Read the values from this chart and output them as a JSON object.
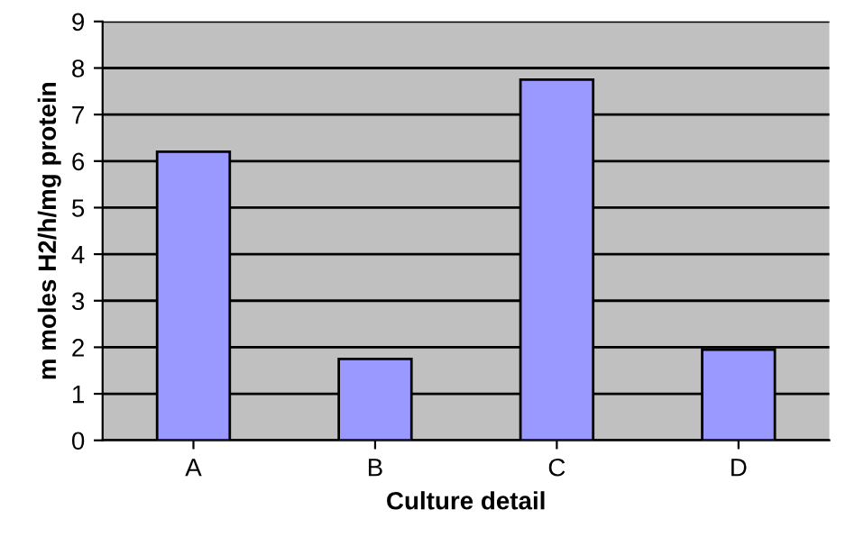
{
  "chart_data": {
    "type": "bar",
    "xlabel": "Culture detail",
    "ylabel": "m moles H2/h/mg protein",
    "categories": [
      "A",
      "B",
      "C",
      "D"
    ],
    "values": [
      6.2,
      1.75,
      7.75,
      1.95
    ],
    "color": "#9999ff",
    "ylim": [
      0,
      9
    ],
    "yticks": [
      0,
      1,
      2,
      3,
      4,
      5,
      6,
      7,
      8,
      9
    ],
    "grid": "y",
    "legend": false
  }
}
